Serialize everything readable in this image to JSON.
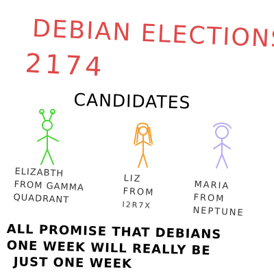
{
  "title": {
    "line1": "DEBIAN ELECTIONS",
    "line2": "2174",
    "color": "#e04848"
  },
  "heading": "CANDIDATES",
  "candidates": [
    {
      "lines": [
        "ELIZABTH",
        "FROM GAMMA",
        "QUADRANT"
      ],
      "figure_color": "#4cd63a",
      "figure": "green-alien-stick-figure"
    },
    {
      "lines": [
        "LIZ",
        "FROM",
        "I2R7X"
      ],
      "figure_color": "#f5a033",
      "figure": "orange-long-haired-stick-figure"
    },
    {
      "lines": [
        "MARIA",
        "FROM",
        "NEPTUNE"
      ],
      "figure_color": "#b9aaf0",
      "figure": "purple-stick-figure"
    }
  ],
  "promise": {
    "line1": "ALL PROMISE THAT DEBIANS",
    "line2": "ONE WEEK WILL REALLY BE",
    "line3": "JUST ONE WEEK"
  }
}
